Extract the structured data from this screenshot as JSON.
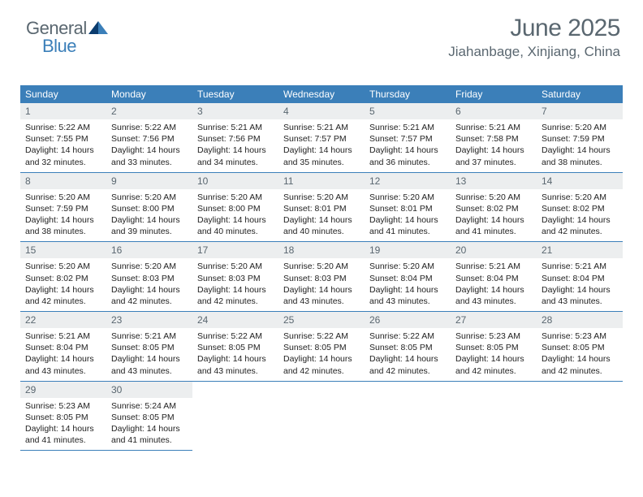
{
  "logo": {
    "part1": "General",
    "part2": "Blue"
  },
  "header": {
    "title": "June 2025",
    "location": "Jiahanbage, Xinjiang, China"
  },
  "colors": {
    "header_bg": "#3b7fb9",
    "header_text": "#ffffff",
    "daynum_bg": "#eceeef",
    "daynum_text": "#5a6770",
    "body_text": "#222222",
    "title_text": "#5a6770",
    "row_border": "#3b7fb9"
  },
  "daysOfWeek": [
    "Sunday",
    "Monday",
    "Tuesday",
    "Wednesday",
    "Thursday",
    "Friday",
    "Saturday"
  ],
  "labels": {
    "sunrise": "Sunrise:",
    "sunset": "Sunset:",
    "daylight": "Daylight:"
  },
  "weeks": [
    [
      {
        "num": "1",
        "sunrise": "5:22 AM",
        "sunset": "7:55 PM",
        "daylight": "14 hours and 32 minutes."
      },
      {
        "num": "2",
        "sunrise": "5:22 AM",
        "sunset": "7:56 PM",
        "daylight": "14 hours and 33 minutes."
      },
      {
        "num": "3",
        "sunrise": "5:21 AM",
        "sunset": "7:56 PM",
        "daylight": "14 hours and 34 minutes."
      },
      {
        "num": "4",
        "sunrise": "5:21 AM",
        "sunset": "7:57 PM",
        "daylight": "14 hours and 35 minutes."
      },
      {
        "num": "5",
        "sunrise": "5:21 AM",
        "sunset": "7:57 PM",
        "daylight": "14 hours and 36 minutes."
      },
      {
        "num": "6",
        "sunrise": "5:21 AM",
        "sunset": "7:58 PM",
        "daylight": "14 hours and 37 minutes."
      },
      {
        "num": "7",
        "sunrise": "5:20 AM",
        "sunset": "7:59 PM",
        "daylight": "14 hours and 38 minutes."
      }
    ],
    [
      {
        "num": "8",
        "sunrise": "5:20 AM",
        "sunset": "7:59 PM",
        "daylight": "14 hours and 38 minutes."
      },
      {
        "num": "9",
        "sunrise": "5:20 AM",
        "sunset": "8:00 PM",
        "daylight": "14 hours and 39 minutes."
      },
      {
        "num": "10",
        "sunrise": "5:20 AM",
        "sunset": "8:00 PM",
        "daylight": "14 hours and 40 minutes."
      },
      {
        "num": "11",
        "sunrise": "5:20 AM",
        "sunset": "8:01 PM",
        "daylight": "14 hours and 40 minutes."
      },
      {
        "num": "12",
        "sunrise": "5:20 AM",
        "sunset": "8:01 PM",
        "daylight": "14 hours and 41 minutes."
      },
      {
        "num": "13",
        "sunrise": "5:20 AM",
        "sunset": "8:02 PM",
        "daylight": "14 hours and 41 minutes."
      },
      {
        "num": "14",
        "sunrise": "5:20 AM",
        "sunset": "8:02 PM",
        "daylight": "14 hours and 42 minutes."
      }
    ],
    [
      {
        "num": "15",
        "sunrise": "5:20 AM",
        "sunset": "8:02 PM",
        "daylight": "14 hours and 42 minutes."
      },
      {
        "num": "16",
        "sunrise": "5:20 AM",
        "sunset": "8:03 PM",
        "daylight": "14 hours and 42 minutes."
      },
      {
        "num": "17",
        "sunrise": "5:20 AM",
        "sunset": "8:03 PM",
        "daylight": "14 hours and 42 minutes."
      },
      {
        "num": "18",
        "sunrise": "5:20 AM",
        "sunset": "8:03 PM",
        "daylight": "14 hours and 43 minutes."
      },
      {
        "num": "19",
        "sunrise": "5:20 AM",
        "sunset": "8:04 PM",
        "daylight": "14 hours and 43 minutes."
      },
      {
        "num": "20",
        "sunrise": "5:21 AM",
        "sunset": "8:04 PM",
        "daylight": "14 hours and 43 minutes."
      },
      {
        "num": "21",
        "sunrise": "5:21 AM",
        "sunset": "8:04 PM",
        "daylight": "14 hours and 43 minutes."
      }
    ],
    [
      {
        "num": "22",
        "sunrise": "5:21 AM",
        "sunset": "8:04 PM",
        "daylight": "14 hours and 43 minutes."
      },
      {
        "num": "23",
        "sunrise": "5:21 AM",
        "sunset": "8:05 PM",
        "daylight": "14 hours and 43 minutes."
      },
      {
        "num": "24",
        "sunrise": "5:22 AM",
        "sunset": "8:05 PM",
        "daylight": "14 hours and 43 minutes."
      },
      {
        "num": "25",
        "sunrise": "5:22 AM",
        "sunset": "8:05 PM",
        "daylight": "14 hours and 42 minutes."
      },
      {
        "num": "26",
        "sunrise": "5:22 AM",
        "sunset": "8:05 PM",
        "daylight": "14 hours and 42 minutes."
      },
      {
        "num": "27",
        "sunrise": "5:23 AM",
        "sunset": "8:05 PM",
        "daylight": "14 hours and 42 minutes."
      },
      {
        "num": "28",
        "sunrise": "5:23 AM",
        "sunset": "8:05 PM",
        "daylight": "14 hours and 42 minutes."
      }
    ],
    [
      {
        "num": "29",
        "sunrise": "5:23 AM",
        "sunset": "8:05 PM",
        "daylight": "14 hours and 41 minutes."
      },
      {
        "num": "30",
        "sunrise": "5:24 AM",
        "sunset": "8:05 PM",
        "daylight": "14 hours and 41 minutes."
      },
      null,
      null,
      null,
      null,
      null
    ]
  ]
}
